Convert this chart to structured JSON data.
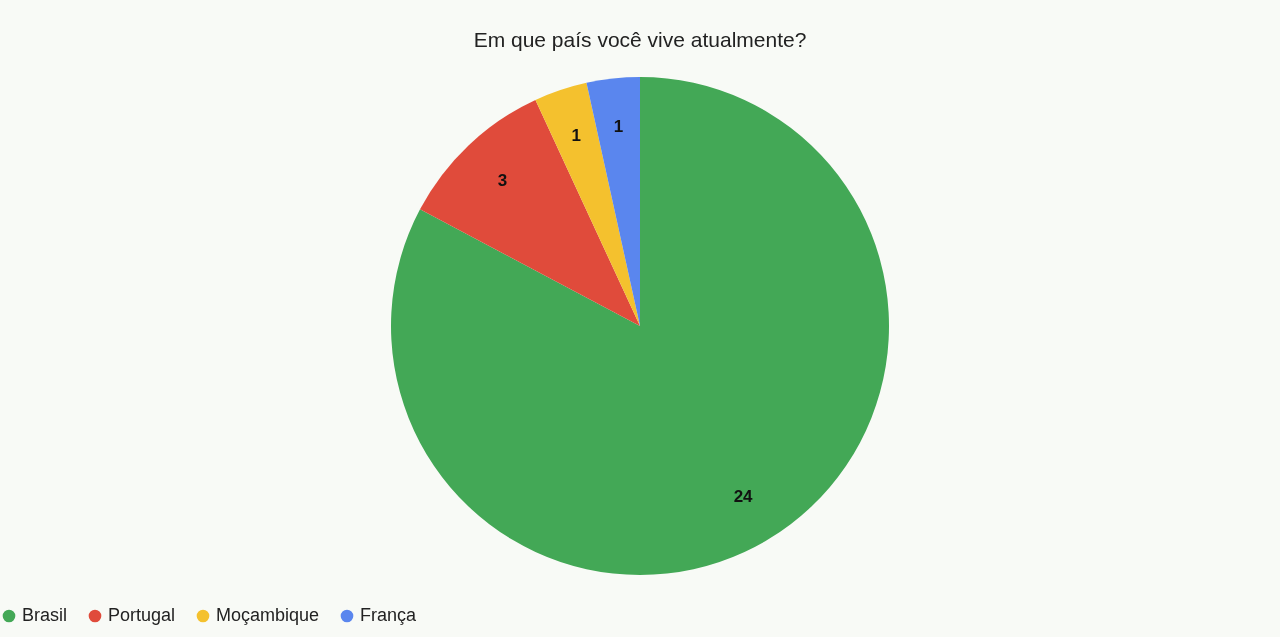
{
  "chart_data": {
    "type": "pie",
    "title": "Em que país você vive atualmente?",
    "categories": [
      "Brasil",
      "Portugal",
      "Moçambique",
      "França"
    ],
    "values": [
      24,
      3,
      1,
      1
    ],
    "colors": [
      "#43a856",
      "#e04b3b",
      "#f4c12e",
      "#5a86ee"
    ],
    "data_labels": true,
    "legend": "bottom"
  }
}
